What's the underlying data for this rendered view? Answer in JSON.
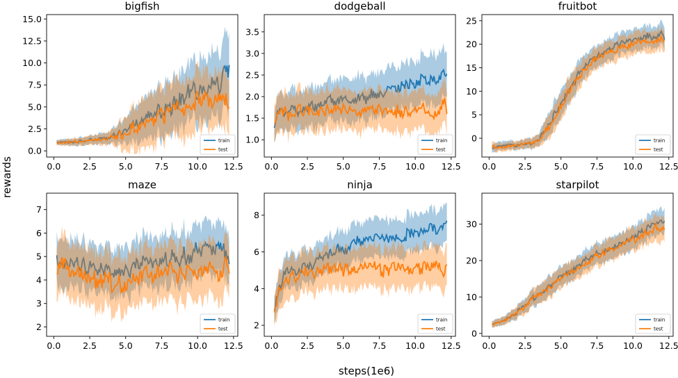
{
  "figure": {
    "xlabel": "steps(1e6)",
    "ylabel": "rewards",
    "colors": {
      "train": "#1f77b4",
      "test": "#ff7f0e"
    },
    "legend": [
      "train",
      "test"
    ]
  },
  "chart_data": [
    {
      "type": "line",
      "title": "bigfish",
      "xlim": [
        -0.5,
        12.8
      ],
      "ylim": [
        -0.7,
        15.5
      ],
      "xticks": [
        "0.0",
        "2.5",
        "5.0",
        "7.5",
        "10.0",
        "12.5"
      ],
      "yticks": [
        "0.0",
        "2.5",
        "5.0",
        "7.5",
        "10.0",
        "12.5",
        "15.0"
      ],
      "legend_position": "lower right",
      "grid": false,
      "series": [
        {
          "name": "train",
          "x": [
            0.2,
            1,
            2,
            3,
            4,
            5,
            6,
            7,
            8,
            9,
            10,
            11,
            11.5,
            12,
            12.2
          ],
          "y": [
            1.0,
            1.0,
            1.1,
            1.3,
            1.6,
            2.3,
            3.2,
            4.2,
            5.2,
            6.0,
            7.0,
            7.8,
            7.2,
            8.9,
            8.2
          ],
          "band": [
            0.3,
            0.4,
            0.5,
            0.6,
            0.8,
            1.6,
            2.5,
            3.0,
            3.3,
            3.5,
            3.8,
            4.0,
            4.0,
            4.5,
            4.5
          ]
        },
        {
          "name": "test",
          "x": [
            0.2,
            1,
            2,
            3,
            4,
            5,
            6,
            7,
            8,
            9,
            10,
            11,
            11.5,
            12,
            12.2
          ],
          "y": [
            0.9,
            1.0,
            1.1,
            1.2,
            1.5,
            2.1,
            2.9,
            3.7,
            4.3,
            4.9,
            5.5,
            5.9,
            6.0,
            6.3,
            5.0
          ],
          "band": [
            0.3,
            0.4,
            0.5,
            0.6,
            0.9,
            2.0,
            3.0,
            3.3,
            3.3,
            3.5,
            3.5,
            3.3,
            3.3,
            3.5,
            3.5
          ]
        }
      ]
    },
    {
      "type": "line",
      "title": "dodgeball",
      "xlim": [
        -0.5,
        12.8
      ],
      "ylim": [
        0.6,
        3.9
      ],
      "xticks": [
        "0.0",
        "2.5",
        "5.0",
        "7.5",
        "10.0",
        "12.5"
      ],
      "yticks": [
        "1.0",
        "1.5",
        "2.0",
        "2.5",
        "3.0",
        "3.5"
      ],
      "legend_position": "lower right",
      "grid": false,
      "series": [
        {
          "name": "train",
          "x": [
            0.2,
            0.5,
            1,
            1.5,
            2,
            3,
            4,
            5,
            6,
            7,
            8,
            9,
            10,
            10.5,
            11,
            11.5,
            12,
            12.2
          ],
          "y": [
            1.35,
            1.7,
            1.6,
            1.8,
            1.65,
            1.8,
            1.9,
            1.95,
            2.0,
            2.0,
            2.1,
            2.2,
            2.3,
            2.4,
            2.35,
            2.5,
            2.6,
            2.6
          ],
          "band": [
            0.4,
            0.45,
            0.45,
            0.5,
            0.5,
            0.5,
            0.5,
            0.55,
            0.55,
            0.55,
            0.55,
            0.55,
            0.6,
            0.6,
            0.6,
            0.65,
            0.6,
            0.55
          ]
        },
        {
          "name": "test",
          "x": [
            0.2,
            0.5,
            1,
            1.5,
            2,
            3,
            4,
            5,
            6,
            7,
            8,
            9,
            10,
            10.5,
            11,
            11.5,
            12,
            12.2
          ],
          "y": [
            1.35,
            1.6,
            1.65,
            1.55,
            1.7,
            1.6,
            1.75,
            1.7,
            1.65,
            1.7,
            1.6,
            1.65,
            1.6,
            1.75,
            1.6,
            1.5,
            1.9,
            1.75
          ],
          "band": [
            0.45,
            0.5,
            0.5,
            0.5,
            0.5,
            0.5,
            0.5,
            0.5,
            0.5,
            0.5,
            0.5,
            0.5,
            0.5,
            0.5,
            0.5,
            0.5,
            0.5,
            0.5
          ]
        }
      ]
    },
    {
      "type": "line",
      "title": "fruitbot",
      "xlim": [
        -0.5,
        12.8
      ],
      "ylim": [
        -4.0,
        26.3
      ],
      "xticks": [
        "0.0",
        "2.5",
        "5.0",
        "7.5",
        "10.0",
        "12.5"
      ],
      "yticks": [
        "0",
        "5",
        "10",
        "15",
        "20",
        "25"
      ],
      "legend_position": "lower right",
      "grid": false,
      "series": [
        {
          "name": "train",
          "x": [
            0.2,
            1,
            2,
            3,
            3.5,
            4,
            4.5,
            5,
            5.5,
            6,
            6.5,
            7,
            7.5,
            8,
            9,
            10,
            11,
            11.5,
            12,
            12.2
          ],
          "y": [
            -2.0,
            -1.7,
            -1.5,
            -1.0,
            0,
            2.0,
            4.5,
            7.5,
            10.0,
            12.5,
            14.5,
            16.0,
            17.5,
            18.5,
            20.0,
            20.8,
            21.5,
            21.5,
            22.0,
            21.2
          ],
          "band": [
            1.0,
            1.0,
            1.0,
            1.2,
            1.5,
            2.5,
            3.0,
            3.0,
            3.0,
            3.0,
            2.8,
            2.5,
            2.5,
            2.5,
            2.5,
            2.5,
            2.5,
            2.5,
            2.5,
            2.5
          ]
        },
        {
          "name": "test",
          "x": [
            0.2,
            1,
            2,
            3,
            3.5,
            4,
            4.5,
            5,
            5.5,
            6,
            6.5,
            7,
            7.5,
            8,
            9,
            10,
            11,
            11.5,
            12,
            12.2
          ],
          "y": [
            -2.0,
            -1.8,
            -1.5,
            -1.1,
            -0.3,
            1.5,
            4.0,
            7.0,
            9.5,
            12.0,
            14.0,
            15.5,
            17.0,
            18.0,
            19.0,
            19.8,
            20.8,
            21.0,
            21.5,
            20.8
          ],
          "band": [
            1.0,
            1.0,
            1.0,
            1.2,
            1.5,
            2.5,
            3.0,
            3.0,
            3.0,
            3.0,
            2.8,
            2.5,
            2.5,
            2.5,
            2.5,
            2.5,
            2.5,
            2.5,
            2.5,
            2.5
          ]
        }
      ]
    },
    {
      "type": "line",
      "title": "maze",
      "xlim": [
        -0.5,
        12.8
      ],
      "ylim": [
        1.6,
        7.7
      ],
      "xticks": [
        "0.0",
        "2.5",
        "5.0",
        "7.5",
        "10.0",
        "12.5"
      ],
      "yticks": [
        "2",
        "3",
        "4",
        "5",
        "6",
        "7"
      ],
      "legend_position": "lower right",
      "grid": false,
      "series": [
        {
          "name": "train",
          "x": [
            0.2,
            0.5,
            1,
            2,
            3,
            4,
            5,
            6,
            7,
            8,
            9,
            10,
            11,
            11.5,
            12,
            12.2
          ],
          "y": [
            5.0,
            4.6,
            4.8,
            4.5,
            4.6,
            4.3,
            4.4,
            4.6,
            4.8,
            4.9,
            5.0,
            5.2,
            5.3,
            5.5,
            5.0,
            5.0
          ],
          "band": [
            1.0,
            1.1,
            1.1,
            1.1,
            1.1,
            1.1,
            1.1,
            1.2,
            1.2,
            1.2,
            1.2,
            1.2,
            1.2,
            1.2,
            1.2,
            1.2
          ]
        },
        {
          "name": "test",
          "x": [
            0.2,
            0.5,
            1,
            2,
            3,
            4,
            5,
            6,
            7,
            8,
            9,
            10,
            11,
            11.5,
            12,
            12.2
          ],
          "y": [
            4.3,
            4.6,
            4.5,
            4.2,
            4.0,
            3.9,
            3.8,
            4.1,
            4.2,
            4.4,
            4.2,
            4.3,
            4.4,
            4.0,
            4.7,
            4.6
          ],
          "band": [
            1.3,
            1.3,
            1.3,
            1.3,
            1.3,
            1.3,
            1.3,
            1.3,
            1.3,
            1.3,
            1.3,
            1.3,
            1.3,
            1.3,
            1.3,
            1.3
          ]
        }
      ]
    },
    {
      "type": "line",
      "title": "ninja",
      "xlim": [
        -0.5,
        12.8
      ],
      "ylim": [
        1.4,
        9.2
      ],
      "xticks": [
        "0.0",
        "2.5",
        "5.0",
        "7.5",
        "10.0",
        "12.5"
      ],
      "yticks": [
        "2",
        "4",
        "6",
        "8"
      ],
      "legend_position": "lower right",
      "grid": false,
      "series": [
        {
          "name": "train",
          "x": [
            0.2,
            0.5,
            1,
            2,
            3,
            4,
            5,
            6,
            7,
            8,
            9,
            10,
            11,
            11.5,
            12,
            12.2
          ],
          "y": [
            2.8,
            4.0,
            4.9,
            5.0,
            5.5,
            5.9,
            6.2,
            6.5,
            6.8,
            6.7,
            6.8,
            7.0,
            7.2,
            7.3,
            7.4,
            7.6
          ],
          "band": [
            0.8,
            1.0,
            1.0,
            1.0,
            1.0,
            1.0,
            1.1,
            1.1,
            1.1,
            1.1,
            1.1,
            1.1,
            1.1,
            1.1,
            1.1,
            1.1
          ]
        },
        {
          "name": "test",
          "x": [
            0.2,
            0.5,
            1,
            2,
            3,
            4,
            5,
            6,
            7,
            8,
            9,
            10,
            11,
            11.5,
            12,
            12.2
          ],
          "y": [
            2.8,
            3.8,
            4.5,
            4.8,
            5.0,
            5.1,
            5.0,
            5.1,
            5.2,
            5.0,
            5.1,
            5.0,
            5.2,
            5.3,
            4.9,
            5.0
          ],
          "band": [
            0.8,
            1.1,
            1.2,
            1.2,
            1.2,
            1.2,
            1.2,
            1.2,
            1.2,
            1.2,
            1.2,
            1.2,
            1.2,
            1.2,
            1.2,
            1.2
          ]
        }
      ]
    },
    {
      "type": "line",
      "title": "starpilot",
      "xlim": [
        -0.5,
        12.8
      ],
      "ylim": [
        -0.8,
        38.5
      ],
      "xticks": [
        "0.0",
        "2.5",
        "5.0",
        "7.5",
        "10.0",
        "12.5"
      ],
      "yticks": [
        "0",
        "10",
        "20",
        "30"
      ],
      "legend_position": "lower right",
      "grid": false,
      "series": [
        {
          "name": "train",
          "x": [
            0.2,
            1,
            2,
            3,
            4,
            5,
            6,
            7,
            8,
            9,
            10,
            11,
            11.5,
            12,
            12.2
          ],
          "y": [
            2.5,
            3.5,
            6.0,
            9.5,
            12.5,
            15.5,
            18.0,
            21.0,
            22.5,
            24.5,
            26.5,
            28.5,
            29.5,
            30.5,
            30.0
          ],
          "band": [
            1.0,
            1.2,
            1.8,
            2.5,
            3.0,
            3.0,
            3.0,
            3.0,
            3.2,
            3.2,
            3.5,
            3.5,
            3.8,
            3.8,
            3.8
          ]
        },
        {
          "name": "test",
          "x": [
            0.2,
            1,
            2,
            3,
            4,
            5,
            6,
            7,
            8,
            9,
            10,
            11,
            11.5,
            12,
            12.2
          ],
          "y": [
            2.5,
            3.3,
            5.8,
            9.3,
            12.0,
            15.0,
            17.5,
            20.2,
            22.0,
            23.8,
            25.5,
            27.5,
            28.5,
            29.5,
            28.5
          ],
          "band": [
            1.0,
            1.2,
            1.8,
            2.5,
            3.0,
            3.0,
            3.0,
            3.0,
            3.2,
            3.2,
            3.5,
            3.5,
            3.8,
            3.8,
            3.8
          ]
        }
      ]
    }
  ]
}
